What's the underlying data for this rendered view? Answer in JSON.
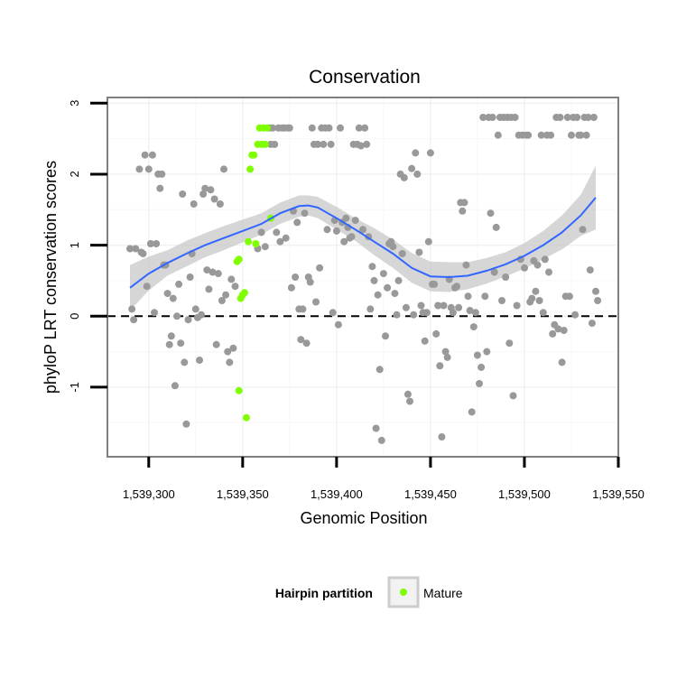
{
  "chart_data": {
    "type": "scatter",
    "title": "Conservation",
    "xlabel": "Genomic Position",
    "ylabel": "phyloP LRT conservation scores",
    "xlim": [
      1539278,
      1539550
    ],
    "ylim": [
      -1.98,
      3.08
    ],
    "x_ticks": [
      1539300,
      1539350,
      1539400,
      1539450,
      1539500,
      1539550
    ],
    "x_tick_labels": [
      "1,539,300",
      "1,539,350",
      "1,539,400",
      "1,539,450",
      "1,539,500",
      "1,539,550"
    ],
    "y_ticks": [
      -1,
      0,
      1,
      2,
      3
    ],
    "y_tick_labels": [
      "-1",
      "0",
      "1",
      "2",
      "3"
    ],
    "reference_line": {
      "y": 0,
      "style": "dashed",
      "color": "#000000"
    },
    "grid": true,
    "legend": {
      "title": "Hairpin partition",
      "position": "bottom",
      "entries": [
        {
          "label": "Mature",
          "color": "#7FFF00"
        }
      ]
    },
    "colors": {
      "background_points": "#999999",
      "mature_points": "#7FFF00",
      "smooth_line": "#3366FF",
      "ribbon": "#C8C8C8"
    },
    "series": [
      {
        "name": "Mature",
        "color": "#7FFF00",
        "points": [
          [
            1539347,
            0.77
          ],
          [
            1539348,
            0.8
          ],
          [
            1539349,
            0.25
          ],
          [
            1539350,
            0.3
          ],
          [
            1539351,
            0.33
          ],
          [
            1539348,
            -1.05
          ],
          [
            1539352,
            -1.43
          ],
          [
            1539353,
            1.05
          ],
          [
            1539354,
            2.07
          ],
          [
            1539355,
            2.27
          ],
          [
            1539356,
            2.27
          ],
          [
            1539357,
            1.02
          ],
          [
            1539358,
            2.42
          ],
          [
            1539359,
            2.65
          ],
          [
            1539360,
            2.42
          ],
          [
            1539361,
            2.65
          ],
          [
            1539362,
            2.42
          ],
          [
            1539363,
            2.65
          ],
          [
            1539365,
            1.38
          ]
        ]
      },
      {
        "color": "#999999",
        "points": [
          [
            1539290,
            0.95
          ],
          [
            1539291,
            0.1
          ],
          [
            1539292,
            -0.05
          ],
          [
            1539293,
            0.95
          ],
          [
            1539295,
            2.07
          ],
          [
            1539296,
            0.9
          ],
          [
            1539297,
            0.88
          ],
          [
            1539298,
            2.27
          ],
          [
            1539299,
            0.42
          ],
          [
            1539300,
            2.07
          ],
          [
            1539301,
            1.02
          ],
          [
            1539302,
            2.27
          ],
          [
            1539303,
            0.05
          ],
          [
            1539304,
            1.02
          ],
          [
            1539305,
            2.0
          ],
          [
            1539306,
            1.8
          ],
          [
            1539307,
            2.0
          ],
          [
            1539308,
            0.72
          ],
          [
            1539309,
            0.72
          ],
          [
            1539310,
            0.32
          ],
          [
            1539311,
            -0.4
          ],
          [
            1539312,
            -0.28
          ],
          [
            1539313,
            0.25
          ],
          [
            1539314,
            -0.98
          ],
          [
            1539315,
            0.0
          ],
          [
            1539316,
            0.45
          ],
          [
            1539317,
            -0.38
          ],
          [
            1539318,
            1.72
          ],
          [
            1539319,
            -0.65
          ],
          [
            1539320,
            -1.52
          ],
          [
            1539321,
            -0.05
          ],
          [
            1539322,
            0.55
          ],
          [
            1539323,
            0.88
          ],
          [
            1539324,
            1.58
          ],
          [
            1539325,
            0.1
          ],
          [
            1539326,
            -0.02
          ],
          [
            1539327,
            -0.62
          ],
          [
            1539328,
            0.02
          ],
          [
            1539329,
            1.72
          ],
          [
            1539330,
            1.8
          ],
          [
            1539331,
            0.65
          ],
          [
            1539332,
            0.38
          ],
          [
            1539333,
            1.78
          ],
          [
            1539334,
            0.62
          ],
          [
            1539335,
            1.65
          ],
          [
            1539336,
            -0.4
          ],
          [
            1539337,
            0.6
          ],
          [
            1539338,
            1.58
          ],
          [
            1539339,
            0.22
          ],
          [
            1539340,
            2.07
          ],
          [
            1539341,
            0.3
          ],
          [
            1539342,
            -0.5
          ],
          [
            1539343,
            -0.65
          ],
          [
            1539344,
            0.52
          ],
          [
            1539345,
            -0.45
          ],
          [
            1539346,
            0.42
          ],
          [
            1539358,
            0.95
          ],
          [
            1539360,
            1.18
          ],
          [
            1539362,
            0.98
          ],
          [
            1539364,
            2.65
          ],
          [
            1539365,
            2.42
          ],
          [
            1539366,
            2.65
          ],
          [
            1539367,
            2.42
          ],
          [
            1539368,
            1.18
          ],
          [
            1539369,
            2.65
          ],
          [
            1539370,
            1.05
          ],
          [
            1539371,
            2.65
          ],
          [
            1539372,
            2.65
          ],
          [
            1539373,
            1.1
          ],
          [
            1539374,
            2.65
          ],
          [
            1539375,
            2.65
          ],
          [
            1539376,
            0.4
          ],
          [
            1539377,
            1.48
          ],
          [
            1539378,
            0.55
          ],
          [
            1539379,
            1.32
          ],
          [
            1539380,
            0.1
          ],
          [
            1539381,
            -0.33
          ],
          [
            1539382,
            0.1
          ],
          [
            1539383,
            1.45
          ],
          [
            1539384,
            -0.38
          ],
          [
            1539385,
            0.55
          ],
          [
            1539386,
            0.48
          ],
          [
            1539387,
            2.65
          ],
          [
            1539388,
            2.42
          ],
          [
            1539389,
            0.2
          ],
          [
            1539390,
            2.42
          ],
          [
            1539391,
            0.68
          ],
          [
            1539392,
            2.65
          ],
          [
            1539393,
            2.42
          ],
          [
            1539394,
            2.65
          ],
          [
            1539395,
            1.22
          ],
          [
            1539396,
            2.65
          ],
          [
            1539397,
            2.42
          ],
          [
            1539398,
            0.05
          ],
          [
            1539399,
            1.35
          ],
          [
            1539400,
            1.2
          ],
          [
            1539401,
            -0.12
          ],
          [
            1539402,
            2.65
          ],
          [
            1539403,
            1.32
          ],
          [
            1539404,
            1.05
          ],
          [
            1539405,
            1.38
          ],
          [
            1539406,
            1.25
          ],
          [
            1539407,
            1.1
          ],
          [
            1539408,
            1.12
          ],
          [
            1539409,
            2.42
          ],
          [
            1539410,
            1.35
          ],
          [
            1539411,
            2.42
          ],
          [
            1539412,
            2.65
          ],
          [
            1539413,
            2.4
          ],
          [
            1539414,
            1.22
          ],
          [
            1539415,
            2.65
          ],
          [
            1539416,
            2.42
          ],
          [
            1539417,
            1.12
          ],
          [
            1539418,
            0.1
          ],
          [
            1539419,
            0.7
          ],
          [
            1539420,
            0.5
          ],
          [
            1539421,
            -1.58
          ],
          [
            1539422,
            0.3
          ],
          [
            1539423,
            -0.75
          ],
          [
            1539424,
            -1.75
          ],
          [
            1539425,
            0.6
          ],
          [
            1539426,
            -0.28
          ],
          [
            1539427,
            0.4
          ],
          [
            1539428,
            1.02
          ],
          [
            1539429,
            1.05
          ],
          [
            1539430,
            0.98
          ],
          [
            1539431,
            0.32
          ],
          [
            1539432,
            0.02
          ],
          [
            1539433,
            0.5
          ],
          [
            1539434,
            2.0
          ],
          [
            1539435,
            0.88
          ],
          [
            1539436,
            1.95
          ],
          [
            1539437,
            0.12
          ],
          [
            1539438,
            -1.1
          ],
          [
            1539439,
            -1.2
          ],
          [
            1539440,
            2.08
          ],
          [
            1539441,
            0.02
          ],
          [
            1539442,
            2.3
          ],
          [
            1539443,
            2.0
          ],
          [
            1539444,
            0.9
          ],
          [
            1539445,
            0.15
          ],
          [
            1539446,
            0.05
          ],
          [
            1539447,
            -0.35
          ],
          [
            1539448,
            0.05
          ],
          [
            1539449,
            1.05
          ],
          [
            1539450,
            2.3
          ],
          [
            1539451,
            0.45
          ],
          [
            1539452,
            0.45
          ],
          [
            1539453,
            -0.25
          ],
          [
            1539454,
            0.15
          ],
          [
            1539455,
            -0.7
          ],
          [
            1539456,
            -1.7
          ],
          [
            1539457,
            0.15
          ],
          [
            1539458,
            -0.5
          ],
          [
            1539459,
            -0.58
          ],
          [
            1539460,
            0.52
          ],
          [
            1539461,
            0.12
          ],
          [
            1539462,
            0.05
          ],
          [
            1539463,
            0.4
          ],
          [
            1539464,
            0.42
          ],
          [
            1539465,
            0.12
          ],
          [
            1539466,
            1.6
          ],
          [
            1539467,
            1.48
          ],
          [
            1539468,
            1.6
          ],
          [
            1539469,
            0.72
          ],
          [
            1539470,
            0.28
          ],
          [
            1539471,
            0.08
          ],
          [
            1539472,
            -1.35
          ],
          [
            1539473,
            -0.15
          ],
          [
            1539474,
            0.05
          ],
          [
            1539475,
            -0.55
          ],
          [
            1539476,
            -0.95
          ],
          [
            1539477,
            -0.72
          ],
          [
            1539478,
            2.8
          ],
          [
            1539479,
            0.28
          ],
          [
            1539480,
            -0.5
          ],
          [
            1539481,
            2.8
          ],
          [
            1539482,
            1.45
          ],
          [
            1539483,
            2.8
          ],
          [
            1539484,
            0.62
          ],
          [
            1539485,
            1.25
          ],
          [
            1539486,
            2.55
          ],
          [
            1539487,
            2.8
          ],
          [
            1539488,
            0.22
          ],
          [
            1539489,
            2.8
          ],
          [
            1539490,
            0.55
          ],
          [
            1539491,
            2.8
          ],
          [
            1539492,
            -0.38
          ],
          [
            1539493,
            2.8
          ],
          [
            1539494,
            -1.12
          ],
          [
            1539495,
            2.8
          ],
          [
            1539496,
            0.15
          ],
          [
            1539497,
            2.55
          ],
          [
            1539498,
            0.8
          ],
          [
            1539499,
            2.55
          ],
          [
            1539500,
            0.68
          ],
          [
            1539501,
            2.55
          ],
          [
            1539502,
            2.55
          ],
          [
            1539503,
            0.2
          ],
          [
            1539504,
            0.25
          ],
          [
            1539505,
            0.78
          ],
          [
            1539506,
            0.35
          ],
          [
            1539507,
            0.72
          ],
          [
            1539508,
            0.22
          ],
          [
            1539509,
            2.55
          ],
          [
            1539510,
            0.05
          ],
          [
            1539511,
            0.8
          ],
          [
            1539512,
            2.55
          ],
          [
            1539513,
            0.62
          ],
          [
            1539514,
            2.55
          ],
          [
            1539515,
            -0.25
          ],
          [
            1539516,
            -0.12
          ],
          [
            1539517,
            2.8
          ],
          [
            1539518,
            -0.18
          ],
          [
            1539519,
            2.8
          ],
          [
            1539520,
            -0.65
          ],
          [
            1539521,
            -0.2
          ],
          [
            1539522,
            0.28
          ],
          [
            1539523,
            2.8
          ],
          [
            1539524,
            0.28
          ],
          [
            1539525,
            2.55
          ],
          [
            1539526,
            2.8
          ],
          [
            1539527,
            0.02
          ],
          [
            1539528,
            2.8
          ],
          [
            1539529,
            2.55
          ],
          [
            1539530,
            2.55
          ],
          [
            1539531,
            1.22
          ],
          [
            1539532,
            2.8
          ],
          [
            1539533,
            2.55
          ],
          [
            1539534,
            2.8
          ],
          [
            1539535,
            0.65
          ],
          [
            1539536,
            -0.1
          ],
          [
            1539537,
            2.8
          ],
          [
            1539538,
            0.35
          ],
          [
            1539539,
            0.22
          ]
        ]
      }
    ],
    "smooth": {
      "x": [
        1539290,
        1539300,
        1539310,
        1539320,
        1539330,
        1539340,
        1539350,
        1539360,
        1539370,
        1539380,
        1539385,
        1539390,
        1539400,
        1539410,
        1539420,
        1539430,
        1539440,
        1539450,
        1539460,
        1539470,
        1539480,
        1539490,
        1539500,
        1539510,
        1539520,
        1539530,
        1539538
      ],
      "y": [
        0.4,
        0.6,
        0.75,
        0.88,
        1.0,
        1.1,
        1.2,
        1.3,
        1.45,
        1.55,
        1.56,
        1.53,
        1.38,
        1.22,
        1.05,
        0.88,
        0.68,
        0.56,
        0.55,
        0.57,
        0.64,
        0.73,
        0.85,
        1.0,
        1.18,
        1.42,
        1.67
      ],
      "lower": [
        0.08,
        0.36,
        0.57,
        0.7,
        0.83,
        0.93,
        1.04,
        1.15,
        1.3,
        1.4,
        1.42,
        1.38,
        1.22,
        1.06,
        0.86,
        0.68,
        0.47,
        0.35,
        0.34,
        0.38,
        0.46,
        0.56,
        0.67,
        0.8,
        0.94,
        1.13,
        1.22
      ],
      "upper": [
        0.72,
        0.84,
        0.93,
        1.06,
        1.17,
        1.27,
        1.36,
        1.45,
        1.6,
        1.7,
        1.7,
        1.68,
        1.54,
        1.38,
        1.24,
        1.08,
        0.89,
        0.77,
        0.76,
        0.76,
        0.82,
        0.9,
        1.03,
        1.2,
        1.42,
        1.71,
        2.12
      ]
    }
  }
}
